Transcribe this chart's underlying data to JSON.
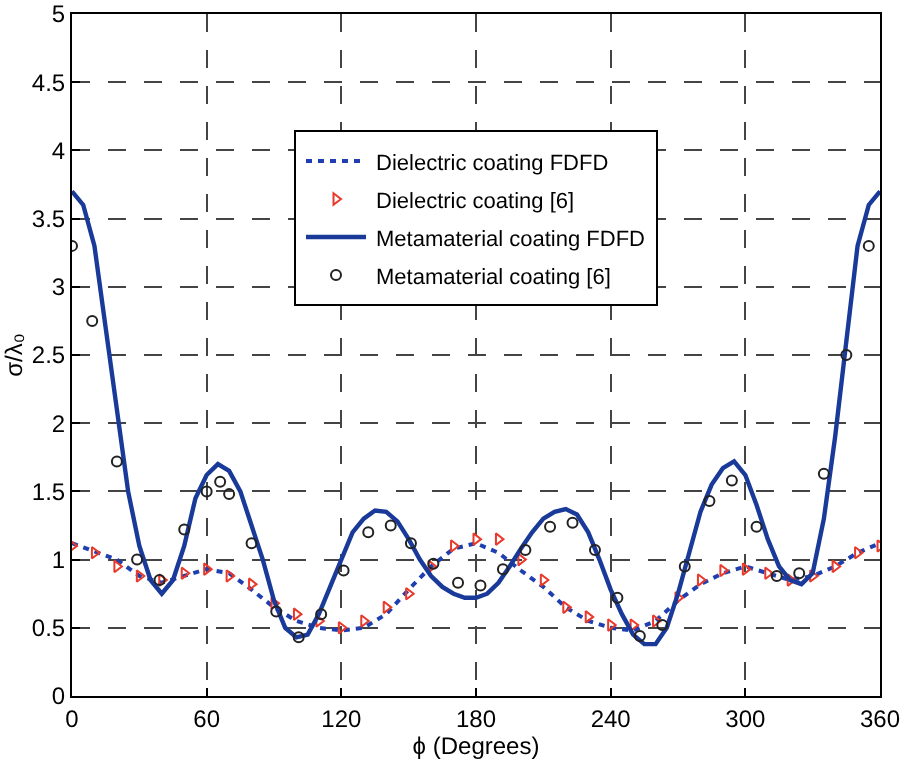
{
  "chart_data": {
    "type": "line",
    "xlabel": "ϕ (Degrees)",
    "ylabel": "σ/λ₀",
    "xlim": [
      0,
      360
    ],
    "xticks": [
      0,
      60,
      120,
      180,
      240,
      300,
      360
    ],
    "ylim": [
      0,
      5
    ],
    "yticks": [
      0,
      0.5,
      1,
      1.5,
      2,
      2.5,
      3,
      3.5,
      4,
      4.5,
      5
    ],
    "grid": true,
    "legend": "top",
    "series": [
      {
        "name": "Dielectric coating FDFD",
        "color": "#1f3fb0",
        "line_style": "dotted",
        "marker": "none",
        "x": [
          0,
          10,
          20,
          30,
          40,
          50,
          60,
          70,
          80,
          90,
          100,
          110,
          120,
          130,
          140,
          150,
          160,
          170,
          180,
          190,
          200,
          210,
          220,
          230,
          240,
          250,
          260,
          270,
          280,
          290,
          300,
          310,
          320,
          330,
          340,
          350,
          360
        ],
        "values": [
          1.12,
          1.06,
          1.0,
          0.88,
          0.83,
          0.88,
          0.93,
          0.9,
          0.78,
          0.65,
          0.55,
          0.5,
          0.48,
          0.5,
          0.6,
          0.78,
          0.95,
          1.08,
          1.12,
          1.05,
          0.92,
          0.8,
          0.65,
          0.55,
          0.5,
          0.48,
          0.55,
          0.7,
          0.82,
          0.9,
          0.95,
          0.9,
          0.85,
          0.88,
          0.95,
          1.05,
          1.12
        ]
      },
      {
        "name": "Dielectric coating [6]",
        "type": "scatter",
        "color": "#e8392a",
        "marker": "triangle",
        "x": [
          0,
          10,
          20,
          30,
          40,
          50,
          60,
          70,
          80,
          90,
          100,
          110,
          120,
          130,
          140,
          150,
          160,
          170,
          180,
          190,
          200,
          210,
          220,
          230,
          240,
          250,
          260,
          270,
          280,
          290,
          300,
          310,
          320,
          330,
          340,
          350,
          360
        ],
        "values": [
          1.1,
          1.05,
          0.95,
          0.88,
          0.85,
          0.9,
          0.93,
          0.88,
          0.82,
          0.68,
          0.6,
          0.55,
          0.5,
          0.55,
          0.65,
          0.75,
          0.95,
          1.1,
          1.15,
          1.15,
          1.0,
          0.85,
          0.65,
          0.58,
          0.52,
          0.52,
          0.55,
          0.72,
          0.85,
          0.92,
          0.93,
          0.9,
          0.85,
          0.88,
          0.95,
          1.05,
          1.1
        ]
      },
      {
        "name": "Metamaterial coating FDFD",
        "color": "#1a3a9a",
        "line_style": "solid",
        "marker": "none",
        "x": [
          0,
          5,
          10,
          15,
          20,
          25,
          30,
          35,
          40,
          45,
          50,
          55,
          60,
          65,
          70,
          75,
          80,
          85,
          90,
          95,
          100,
          105,
          110,
          115,
          120,
          125,
          130,
          135,
          140,
          145,
          150,
          155,
          160,
          165,
          170,
          175,
          180,
          185,
          190,
          195,
          200,
          205,
          210,
          215,
          220,
          225,
          230,
          235,
          240,
          245,
          250,
          255,
          260,
          265,
          270,
          275,
          280,
          285,
          290,
          295,
          300,
          305,
          310,
          315,
          320,
          325,
          330,
          335,
          340,
          345,
          350,
          355,
          360
        ],
        "values": [
          3.7,
          3.6,
          3.3,
          2.7,
          2.1,
          1.5,
          1.1,
          0.85,
          0.75,
          0.85,
          1.1,
          1.45,
          1.62,
          1.7,
          1.65,
          1.5,
          1.25,
          1.0,
          0.7,
          0.5,
          0.43,
          0.45,
          0.6,
          0.8,
          1.0,
          1.2,
          1.3,
          1.36,
          1.35,
          1.28,
          1.15,
          1.0,
          0.88,
          0.8,
          0.75,
          0.72,
          0.72,
          0.75,
          0.83,
          0.95,
          1.08,
          1.2,
          1.3,
          1.35,
          1.37,
          1.33,
          1.2,
          1.0,
          0.78,
          0.6,
          0.45,
          0.38,
          0.38,
          0.5,
          0.75,
          1.05,
          1.35,
          1.55,
          1.67,
          1.72,
          1.62,
          1.4,
          1.15,
          0.95,
          0.85,
          0.82,
          0.9,
          1.3,
          1.9,
          2.6,
          3.3,
          3.6,
          3.7
        ]
      },
      {
        "name": "Metamaterial coating [6]",
        "type": "scatter",
        "color": "#222222",
        "marker": "circle",
        "x": [
          0,
          9,
          20,
          29,
          39,
          50,
          60,
          66,
          70,
          80,
          91,
          101,
          111,
          121,
          132,
          142,
          151,
          161,
          172,
          182,
          192,
          202,
          213,
          223,
          233,
          243,
          253,
          263,
          273,
          284,
          294,
          305,
          314,
          324,
          335,
          345,
          355
        ],
        "values": [
          3.3,
          2.75,
          1.72,
          1.0,
          0.85,
          1.22,
          1.5,
          1.57,
          1.48,
          1.12,
          0.62,
          0.43,
          0.6,
          0.92,
          1.2,
          1.25,
          1.12,
          0.97,
          0.83,
          0.81,
          0.93,
          1.07,
          1.24,
          1.27,
          1.07,
          0.72,
          0.44,
          0.52,
          0.95,
          1.43,
          1.58,
          1.24,
          0.88,
          0.9,
          1.63,
          2.5,
          3.3
        ]
      }
    ]
  }
}
